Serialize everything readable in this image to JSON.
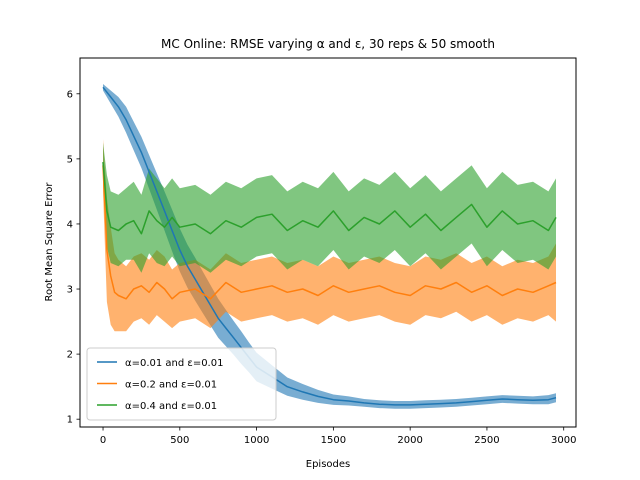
{
  "chart_data": {
    "type": "line",
    "title": "MC Online: RMSE varying α and ε, 30 reps & 50 smooth",
    "xlabel": "Episodes",
    "ylabel": "Root Mean Square Error",
    "xlim": [
      -150,
      3080
    ],
    "ylim": [
      0.88,
      6.55
    ],
    "xticks": [
      0,
      500,
      1000,
      1500,
      2000,
      2500,
      3000
    ],
    "xtick_labels": [
      "0",
      "500",
      "1000",
      "1500",
      "2000",
      "2500",
      "3000"
    ],
    "yticks": [
      1,
      2,
      3,
      4,
      5,
      6
    ],
    "ytick_labels": [
      "1",
      "2",
      "3",
      "4",
      "5",
      "6"
    ],
    "grid": false,
    "legend_position": "lower-left",
    "series": [
      {
        "name": "α=0.01 and ε=0.01",
        "color": "#1f77b4",
        "x": [
          0,
          50,
          100,
          150,
          200,
          250,
          300,
          350,
          400,
          450,
          500,
          550,
          600,
          650,
          700,
          750,
          800,
          850,
          900,
          950,
          1000,
          1100,
          1200,
          1300,
          1400,
          1500,
          1600,
          1700,
          1800,
          1900,
          2000,
          2100,
          2200,
          2300,
          2400,
          2500,
          2600,
          2700,
          2800,
          2900,
          2950
        ],
        "y": [
          6.1,
          5.95,
          5.8,
          5.6,
          5.35,
          5.1,
          4.8,
          4.5,
          4.2,
          3.9,
          3.6,
          3.35,
          3.15,
          2.95,
          2.75,
          2.55,
          2.4,
          2.25,
          2.1,
          1.95,
          1.8,
          1.65,
          1.5,
          1.42,
          1.35,
          1.3,
          1.28,
          1.25,
          1.23,
          1.22,
          1.22,
          1.23,
          1.24,
          1.25,
          1.27,
          1.29,
          1.31,
          1.3,
          1.29,
          1.3,
          1.33
        ],
        "band_half_width": [
          0.05,
          0.1,
          0.15,
          0.2,
          0.22,
          0.24,
          0.26,
          0.28,
          0.3,
          0.32,
          0.33,
          0.33,
          0.33,
          0.32,
          0.31,
          0.3,
          0.28,
          0.26,
          0.25,
          0.23,
          0.22,
          0.18,
          0.14,
          0.12,
          0.1,
          0.08,
          0.07,
          0.06,
          0.06,
          0.06,
          0.06,
          0.06,
          0.06,
          0.06,
          0.06,
          0.06,
          0.06,
          0.06,
          0.06,
          0.07,
          0.07
        ]
      },
      {
        "name": "α=0.2 and ε=0.01",
        "color": "#ff7f0e",
        "x": [
          0,
          25,
          50,
          75,
          100,
          150,
          200,
          250,
          300,
          350,
          400,
          450,
          500,
          600,
          700,
          800,
          900,
          1000,
          1100,
          1200,
          1300,
          1400,
          1500,
          1600,
          1700,
          1800,
          1900,
          2000,
          2100,
          2200,
          2300,
          2400,
          2500,
          2600,
          2700,
          2800,
          2900,
          2950
        ],
        "y": [
          4.9,
          3.6,
          3.2,
          2.95,
          2.9,
          2.85,
          3.0,
          3.05,
          2.95,
          3.1,
          3.0,
          2.85,
          2.95,
          3.0,
          2.85,
          3.1,
          2.95,
          3.0,
          3.05,
          2.95,
          3.0,
          2.9,
          3.05,
          2.95,
          3.0,
          3.05,
          2.95,
          2.9,
          3.05,
          3.0,
          3.1,
          2.95,
          3.05,
          2.9,
          3.0,
          2.95,
          3.05,
          3.1
        ],
        "band_half_width": [
          0.4,
          0.8,
          0.75,
          0.6,
          0.55,
          0.5,
          0.5,
          0.5,
          0.5,
          0.5,
          0.5,
          0.45,
          0.45,
          0.45,
          0.45,
          0.45,
          0.45,
          0.45,
          0.45,
          0.45,
          0.45,
          0.45,
          0.45,
          0.45,
          0.45,
          0.45,
          0.45,
          0.45,
          0.45,
          0.45,
          0.45,
          0.45,
          0.45,
          0.45,
          0.45,
          0.45,
          0.45,
          0.6
        ]
      },
      {
        "name": "α=0.4 and ε=0.01",
        "color": "#2ca02c",
        "x": [
          0,
          25,
          50,
          100,
          150,
          200,
          250,
          300,
          350,
          400,
          450,
          500,
          600,
          700,
          800,
          900,
          1000,
          1100,
          1200,
          1300,
          1400,
          1500,
          1600,
          1700,
          1800,
          1900,
          2000,
          2100,
          2200,
          2300,
          2400,
          2500,
          2600,
          2700,
          2800,
          2900,
          2950
        ],
        "y": [
          4.95,
          4.2,
          3.95,
          3.9,
          4.0,
          4.05,
          3.85,
          4.2,
          4.05,
          3.95,
          4.1,
          3.95,
          4.0,
          3.85,
          4.05,
          3.95,
          4.1,
          4.15,
          3.9,
          4.05,
          3.95,
          4.2,
          3.9,
          4.1,
          4.0,
          4.2,
          3.95,
          4.15,
          3.9,
          4.1,
          4.3,
          3.95,
          4.2,
          4.0,
          4.05,
          3.9,
          4.1
        ],
        "band_half_width": [
          0.3,
          0.55,
          0.55,
          0.55,
          0.55,
          0.6,
          0.6,
          0.65,
          0.65,
          0.6,
          0.6,
          0.6,
          0.6,
          0.6,
          0.6,
          0.6,
          0.6,
          0.6,
          0.6,
          0.6,
          0.6,
          0.6,
          0.6,
          0.6,
          0.6,
          0.6,
          0.6,
          0.6,
          0.6,
          0.6,
          0.6,
          0.6,
          0.6,
          0.6,
          0.6,
          0.6,
          0.6
        ]
      }
    ]
  }
}
